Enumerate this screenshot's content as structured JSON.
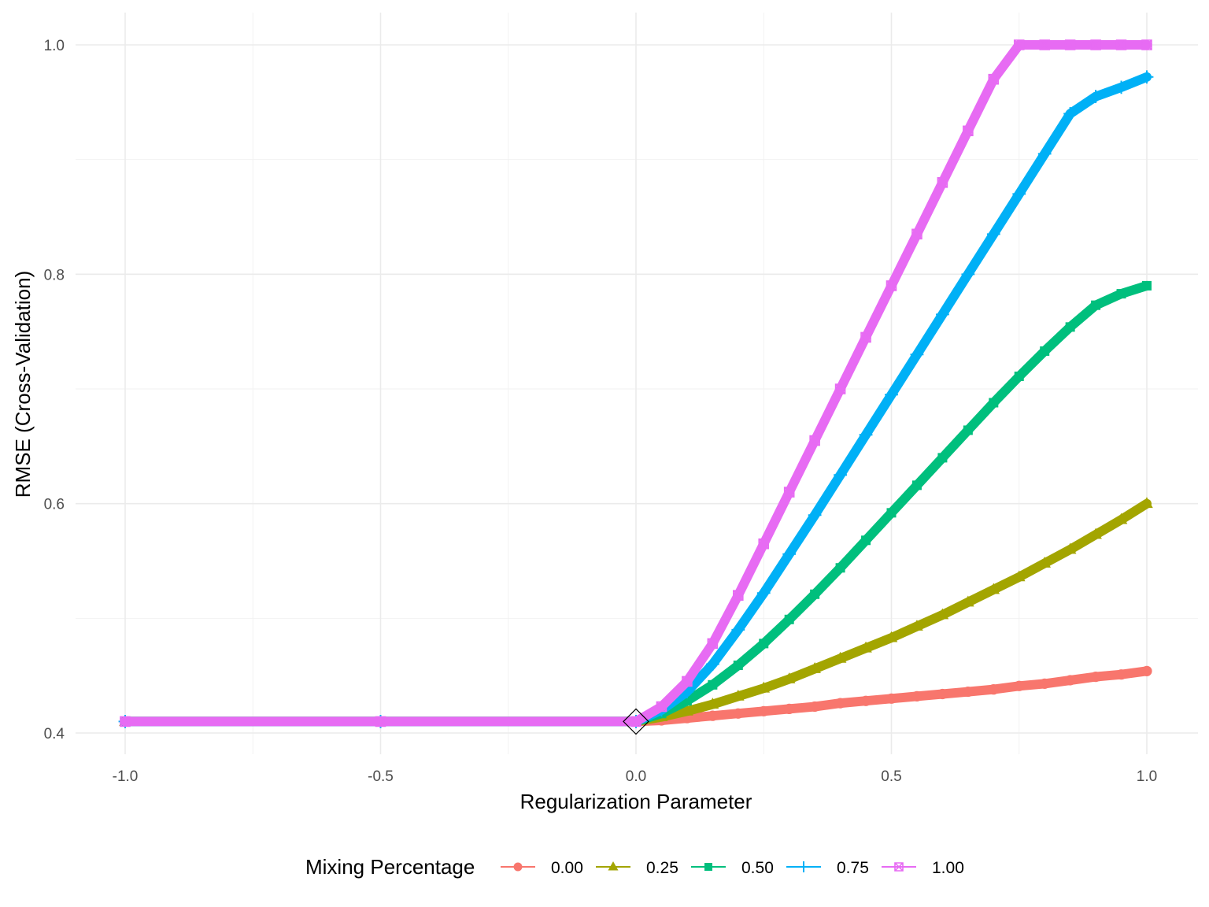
{
  "chart_data": {
    "type": "line",
    "xlabel": "Regularization Parameter",
    "ylabel": "RMSE (Cross-Validation)",
    "xlim": [
      -1.08,
      1.1
    ],
    "ylim": [
      0.381,
      1.03
    ],
    "x_ticks": [
      -1.0,
      -0.5,
      0.0,
      0.5,
      1.0
    ],
    "x_tick_labels": [
      "-1.0",
      "-0.5",
      "0.0",
      "0.5",
      "1.0"
    ],
    "y_ticks": [
      0.4,
      0.6,
      0.8,
      1.0
    ],
    "y_tick_labels": [
      "0.4",
      "0.6",
      "0.8",
      "1.0"
    ],
    "grid": true,
    "legend": {
      "title": "Mixing Percentage",
      "position": "bottom"
    },
    "x": [
      -1.0,
      -0.5,
      0.0,
      0.05,
      0.1,
      0.15,
      0.2,
      0.25,
      0.3,
      0.35,
      0.4,
      0.45,
      0.5,
      0.55,
      0.6,
      0.65,
      0.7,
      0.75,
      0.8,
      0.85,
      0.9,
      0.95,
      1.0
    ],
    "series": [
      {
        "name": "0.00",
        "color": "#F8766D",
        "marker": "circle",
        "values": [
          0.41,
          0.41,
          0.41,
          0.411,
          0.413,
          0.415,
          0.417,
          0.419,
          0.421,
          0.423,
          0.426,
          0.428,
          0.43,
          0.432,
          0.434,
          0.436,
          0.438,
          0.441,
          0.443,
          0.446,
          0.449,
          0.451,
          0.454
        ]
      },
      {
        "name": "0.25",
        "color": "#A3A500",
        "marker": "triangle",
        "values": [
          0.41,
          0.41,
          0.41,
          0.414,
          0.419,
          0.425,
          0.432,
          0.439,
          0.447,
          0.456,
          0.465,
          0.474,
          0.483,
          0.493,
          0.503,
          0.514,
          0.525,
          0.536,
          0.548,
          0.56,
          0.573,
          0.586,
          0.6
        ]
      },
      {
        "name": "0.50",
        "color": "#00BF7D",
        "marker": "square",
        "values": [
          0.41,
          0.41,
          0.41,
          0.417,
          0.428,
          0.442,
          0.459,
          0.478,
          0.499,
          0.521,
          0.544,
          0.568,
          0.592,
          0.616,
          0.64,
          0.664,
          0.688,
          0.711,
          0.733,
          0.754,
          0.773,
          0.783,
          0.79
        ]
      },
      {
        "name": "0.75",
        "color": "#00B0F6",
        "marker": "cross",
        "values": [
          0.41,
          0.41,
          0.41,
          0.42,
          0.436,
          0.46,
          0.49,
          0.522,
          0.556,
          0.59,
          0.625,
          0.66,
          0.695,
          0.73,
          0.765,
          0.8,
          0.835,
          0.87,
          0.905,
          0.94,
          0.955,
          0.963,
          0.972
        ]
      },
      {
        "name": "1.00",
        "color": "#E76BF3",
        "marker": "square-cross",
        "values": [
          0.41,
          0.41,
          0.41,
          0.423,
          0.445,
          0.478,
          0.52,
          0.565,
          0.61,
          0.655,
          0.7,
          0.745,
          0.79,
          0.835,
          0.88,
          0.925,
          0.97,
          1.0,
          1.0,
          1.0,
          1.0,
          1.0,
          1.0
        ]
      }
    ],
    "annotations": [
      {
        "type": "diamond-marker",
        "x": 0.0,
        "y": 0.41,
        "color": "#000000"
      }
    ]
  }
}
